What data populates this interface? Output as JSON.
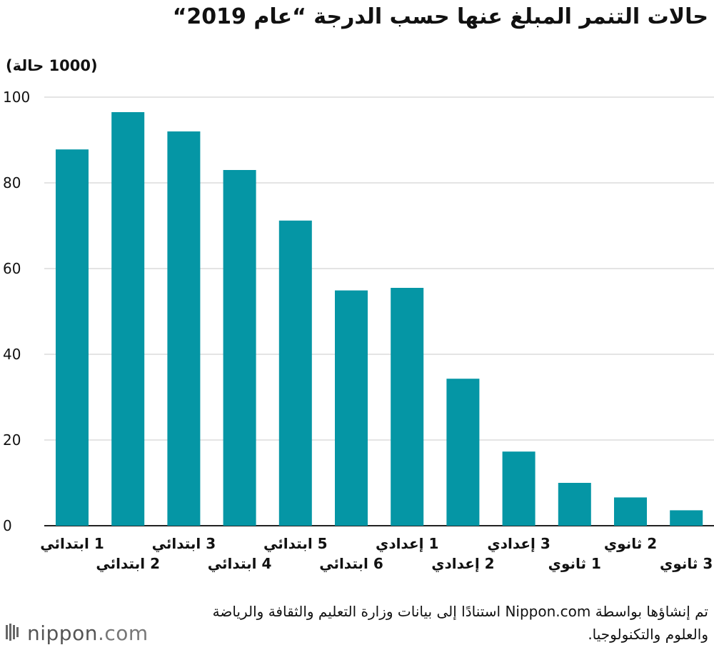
{
  "title": "حالات التنمر المبلغ عنها حسب الدرجة “عام 2019“",
  "unit_label": "(1000 حالة)",
  "colors": {
    "bar": "#0596a5",
    "axis": "#222222",
    "grid": "#c8c8c8"
  },
  "chart_data": {
    "type": "bar",
    "title": "حالات التنمر المبلغ عنها حسب الدرجة “عام 2019“",
    "ylabel": "(1000 حالة)",
    "xlabel": "",
    "ylim": [
      0,
      100
    ],
    "yticks": [
      0,
      20,
      40,
      60,
      80,
      100
    ],
    "grid": true,
    "categories": [
      "1 ابتدائي",
      "2 ابتدائي",
      "3 ابتدائي",
      "4 ابتدائي",
      "5 ابتدائي",
      "6 ابتدائي",
      "1 إعدادي",
      "2 إعدادي",
      "3 إعدادي",
      "1 ثانوي",
      "2 ثانوي",
      "3 ثانوي"
    ],
    "values": [
      87.8,
      96.5,
      92.0,
      83.0,
      71.2,
      54.9,
      55.5,
      34.3,
      17.3,
      10.0,
      6.6,
      3.6
    ]
  },
  "source": "تم إنشاؤها بواسطة Nippon.com استنادًا إلى بيانات وزارة التعليم والثقافة والرياضة والعلوم والتكنولوجيا.",
  "logo": {
    "name": "nippon",
    "suffix": ".com",
    "icon": "nippon-logo-icon"
  }
}
